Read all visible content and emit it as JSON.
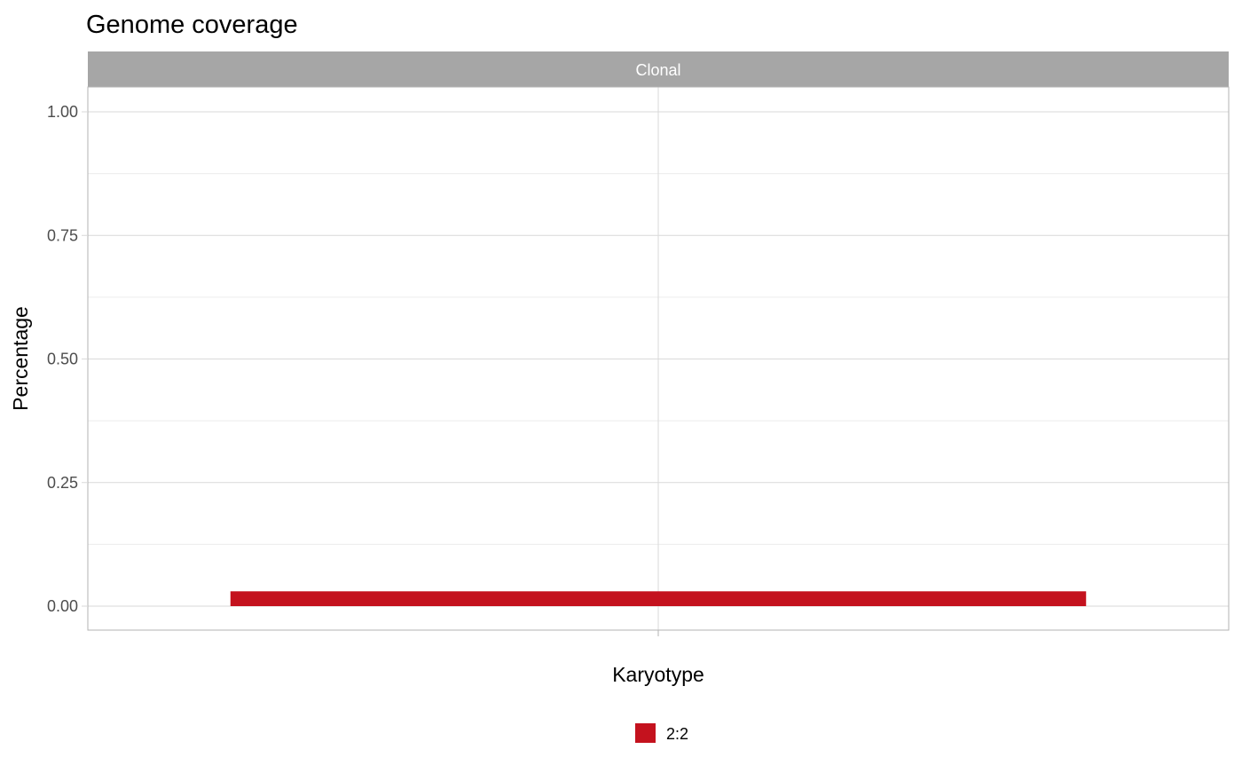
{
  "chart_data": {
    "type": "bar",
    "title": "Genome coverage",
    "facet_label": "Clonal",
    "xlabel": "Karyotype",
    "ylabel": "Percentage",
    "ylim": [
      -0.045,
      1.0
    ],
    "y_ticks": [
      0.0,
      0.25,
      0.5,
      0.75,
      1.0
    ],
    "y_tick_labels": [
      "0.00",
      "0.25",
      "0.50",
      "0.75",
      "1.00"
    ],
    "categories": [
      ""
    ],
    "series": [
      {
        "name": "2:2",
        "values": [
          0.03
        ],
        "color": "#c4121e"
      }
    ],
    "grid": true,
    "legend_position": "bottom",
    "colors": {
      "strip": "#a6a6a6",
      "grid_major": "#d9d9d9",
      "grid_minor": "#ececec",
      "panel_border": "#b3b3b3"
    }
  }
}
